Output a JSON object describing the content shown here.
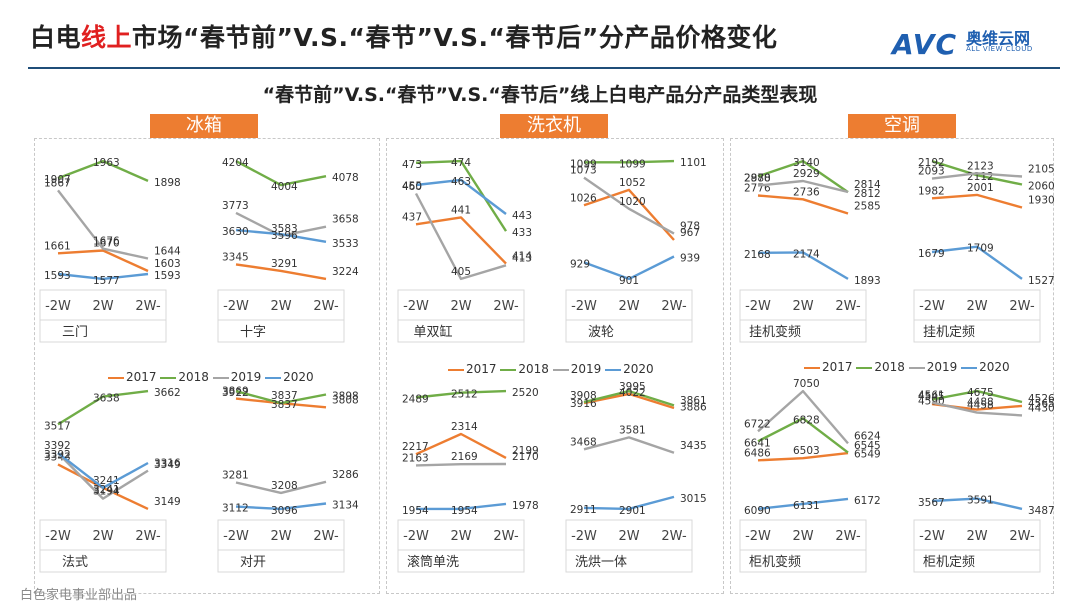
{
  "title": {
    "prefix": "白电",
    "highlight": "线上",
    "rest": "市场“春节前”V.S.“春节”V.S.“春节后”分产品价格变化"
  },
  "logo": {
    "mark": "AVC",
    "cn": "奥维云网",
    "en": "ALL VIEW CLOUD"
  },
  "subtitle": "“春节前”V.S.“春节”V.S.“春节后”线上白电产品分产品类型表现",
  "footer": "白色家电事业部出品",
  "categories": [
    {
      "label": "冰箱"
    },
    {
      "label": "洗衣机"
    },
    {
      "label": "空调"
    }
  ],
  "legend": {
    "items": [
      "2017",
      "2018",
      "2019",
      "2020"
    ]
  },
  "colors": {
    "2017": "#ed7d31",
    "2018": "#70ad47",
    "2019": "#a5a5a5",
    "2020": "#5b9bd5"
  },
  "chart_data": [
    {
      "type": "line",
      "title": "三门",
      "x": [
        "-2W",
        "2W",
        "2W-"
      ],
      "series": [
        {
          "name": "2017",
          "values": [
            1661,
            1670,
            1603
          ]
        },
        {
          "name": "2018",
          "values": [
            1907,
            1963,
            1898
          ]
        },
        {
          "name": "2019",
          "values": [
            1867,
            1676,
            1644
          ]
        },
        {
          "name": "2020",
          "values": [
            1593,
            1577,
            1593
          ]
        }
      ]
    },
    {
      "type": "line",
      "title": "十字",
      "x": [
        "-2W",
        "2W",
        "2W-"
      ],
      "series": [
        {
          "name": "2017",
          "values": [
            3345,
            3291,
            3224
          ]
        },
        {
          "name": "2018",
          "values": [
            4204,
            4004,
            4078
          ]
        },
        {
          "name": "2019",
          "values": [
            3773,
            3583,
            3658
          ]
        },
        {
          "name": "2020",
          "values": [
            3630,
            3596,
            3533
          ]
        }
      ]
    },
    {
      "type": "line",
      "title": "单双缸",
      "x": [
        "-2W",
        "2W",
        "2W-"
      ],
      "series": [
        {
          "name": "2017",
          "values": [
            437,
            441,
            414
          ]
        },
        {
          "name": "2018",
          "values": [
            473,
            474,
            433
          ]
        },
        {
          "name": "2019",
          "values": [
            455,
            405,
            413
          ]
        },
        {
          "name": "2020",
          "values": [
            460,
            463,
            443
          ]
        }
      ]
    },
    {
      "type": "line",
      "title": "波轮",
      "x": [
        "-2W",
        "2W",
        "2W-"
      ],
      "series": [
        {
          "name": "2017",
          "values": [
            1026,
            1052,
            967
          ]
        },
        {
          "name": "2018",
          "values": [
            1099,
            1099,
            1101
          ]
        },
        {
          "name": "2019",
          "values": [
            1073,
            1020,
            978
          ]
        },
        {
          "name": "2020",
          "values": [
            929,
            901,
            939
          ]
        }
      ]
    },
    {
      "type": "line",
      "title": "挂机变频",
      "x": [
        "-2W",
        "2W",
        "2W-"
      ],
      "series": [
        {
          "name": "2017",
          "values": [
            2776,
            2736,
            2585
          ]
        },
        {
          "name": "2018",
          "values": [
            2978,
            3140,
            2812
          ]
        },
        {
          "name": "2019",
          "values": [
            2880,
            2929,
            2814
          ]
        },
        {
          "name": "2020",
          "values": [
            2168,
            2174,
            1893
          ]
        }
      ]
    },
    {
      "type": "line",
      "title": "挂机定频",
      "x": [
        "-2W",
        "2W",
        "2W-"
      ],
      "series": [
        {
          "name": "2017",
          "values": [
            1982,
            2001,
            1930
          ]
        },
        {
          "name": "2018",
          "values": [
            2192,
            2112,
            2060
          ]
        },
        {
          "name": "2019",
          "values": [
            2093,
            2123,
            2105
          ]
        },
        {
          "name": "2020",
          "values": [
            1679,
            1709,
            1527
          ]
        }
      ]
    },
    {
      "type": "line",
      "title": "法式",
      "x": [
        "-2W",
        "2W",
        "2W-"
      ],
      "series": [
        {
          "name": "2017",
          "values": [
            3343,
            3241,
            3149
          ]
        },
        {
          "name": "2018",
          "values": [
            3517,
            3638,
            3662
          ]
        },
        {
          "name": "2019",
          "values": [
            3392,
            3194,
            3316
          ]
        },
        {
          "name": "2020",
          "values": [
            3392,
            3241,
            3349
          ]
        }
      ]
    },
    {
      "type": "line",
      "title": "对开",
      "x": [
        "-2W",
        "2W",
        "2W-"
      ],
      "series": [
        {
          "name": "2017",
          "values": [
            3869,
            3837,
            3808
          ]
        },
        {
          "name": "2018",
          "values": [
            3922,
            3837,
            3898
          ]
        },
        {
          "name": "2019",
          "values": [
            3281,
            3208,
            3286
          ]
        },
        {
          "name": "2020",
          "values": [
            3112,
            3096,
            3134
          ]
        }
      ]
    },
    {
      "type": "line",
      "title": "滚筒单洗",
      "x": [
        "-2W",
        "2W",
        "2W-"
      ],
      "series": [
        {
          "name": "2017",
          "values": [
            2217,
            2314,
            2199
          ]
        },
        {
          "name": "2018",
          "values": [
            2489,
            2512,
            2520
          ]
        },
        {
          "name": "2019",
          "values": [
            2163,
            2169,
            2170
          ]
        },
        {
          "name": "2020",
          "values": [
            1954,
            1954,
            1978
          ]
        }
      ]
    },
    {
      "type": "line",
      "title": "洗烘一体",
      "x": [
        "-2W",
        "2W",
        "2W-"
      ],
      "series": [
        {
          "name": "2017",
          "values": [
            3908,
            3995,
            3861
          ]
        },
        {
          "name": "2018",
          "values": [
            3916,
            4022,
            3886
          ]
        },
        {
          "name": "2019",
          "values": [
            3468,
            3581,
            3435
          ]
        },
        {
          "name": "2020",
          "values": [
            2911,
            2901,
            3015
          ]
        }
      ]
    },
    {
      "type": "line",
      "title": "柜机变频",
      "x": [
        "-2W",
        "2W",
        "2W-"
      ],
      "series": [
        {
          "name": "2017",
          "values": [
            6486,
            6503,
            6545
          ]
        },
        {
          "name": "2018",
          "values": [
            6641,
            6828,
            6549
          ]
        },
        {
          "name": "2019",
          "values": [
            6722,
            7050,
            6624
          ]
        },
        {
          "name": "2020",
          "values": [
            6090,
            6131,
            6172
          ]
        }
      ]
    },
    {
      "type": "line",
      "title": "柜机定频",
      "x": [
        "-2W",
        "2W",
        "2W-"
      ],
      "series": [
        {
          "name": "2017",
          "values": [
            4545,
            4488,
            4526
          ]
        },
        {
          "name": "2018",
          "values": [
            4590,
            4675,
            4565
          ]
        },
        {
          "name": "2019",
          "values": [
            4561,
            4458,
            4430
          ]
        },
        {
          "name": "2020",
          "values": [
            3567,
            3591,
            3487
          ]
        }
      ]
    }
  ]
}
